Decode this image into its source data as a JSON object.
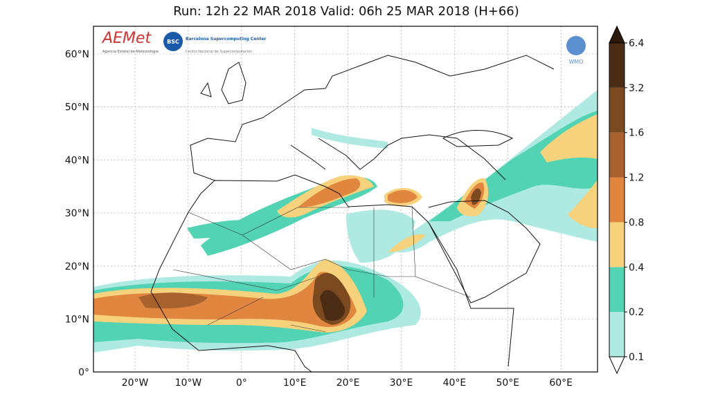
{
  "header": {
    "title": "Run: 12h 22 MAR 2018   Valid: 06h 25 MAR 2018 (H+66)"
  },
  "logos": {
    "aemet": "AEMet",
    "aemet_sub": "Agencia Estatal de Meteorología",
    "bsc": "BSC",
    "bsc_name": "Barcelona Supercomputing Center",
    "bsc_sub": "Centro Nacional de Supercomputación",
    "wmo": "WMO"
  },
  "axes": {
    "lat_labels": [
      "60°N",
      "50°N",
      "40°N",
      "30°N",
      "20°N",
      "10°N",
      "0°"
    ],
    "lon_labels": [
      "20°W",
      "10°W",
      "0°",
      "10°E",
      "20°E",
      "30°E",
      "40°E",
      "50°E",
      "60°E"
    ]
  },
  "colorbar": {
    "ticks": [
      0.1,
      0.2,
      0.4,
      0.8,
      1.2,
      1.6,
      3.2,
      6.4
    ],
    "colors": [
      "#aee9e2",
      "#52d3b3",
      "#f7d27c",
      "#e0863f",
      "#a8622e",
      "#7b4a1f",
      "#4a2d14",
      "#2b1a0b"
    ]
  }
}
